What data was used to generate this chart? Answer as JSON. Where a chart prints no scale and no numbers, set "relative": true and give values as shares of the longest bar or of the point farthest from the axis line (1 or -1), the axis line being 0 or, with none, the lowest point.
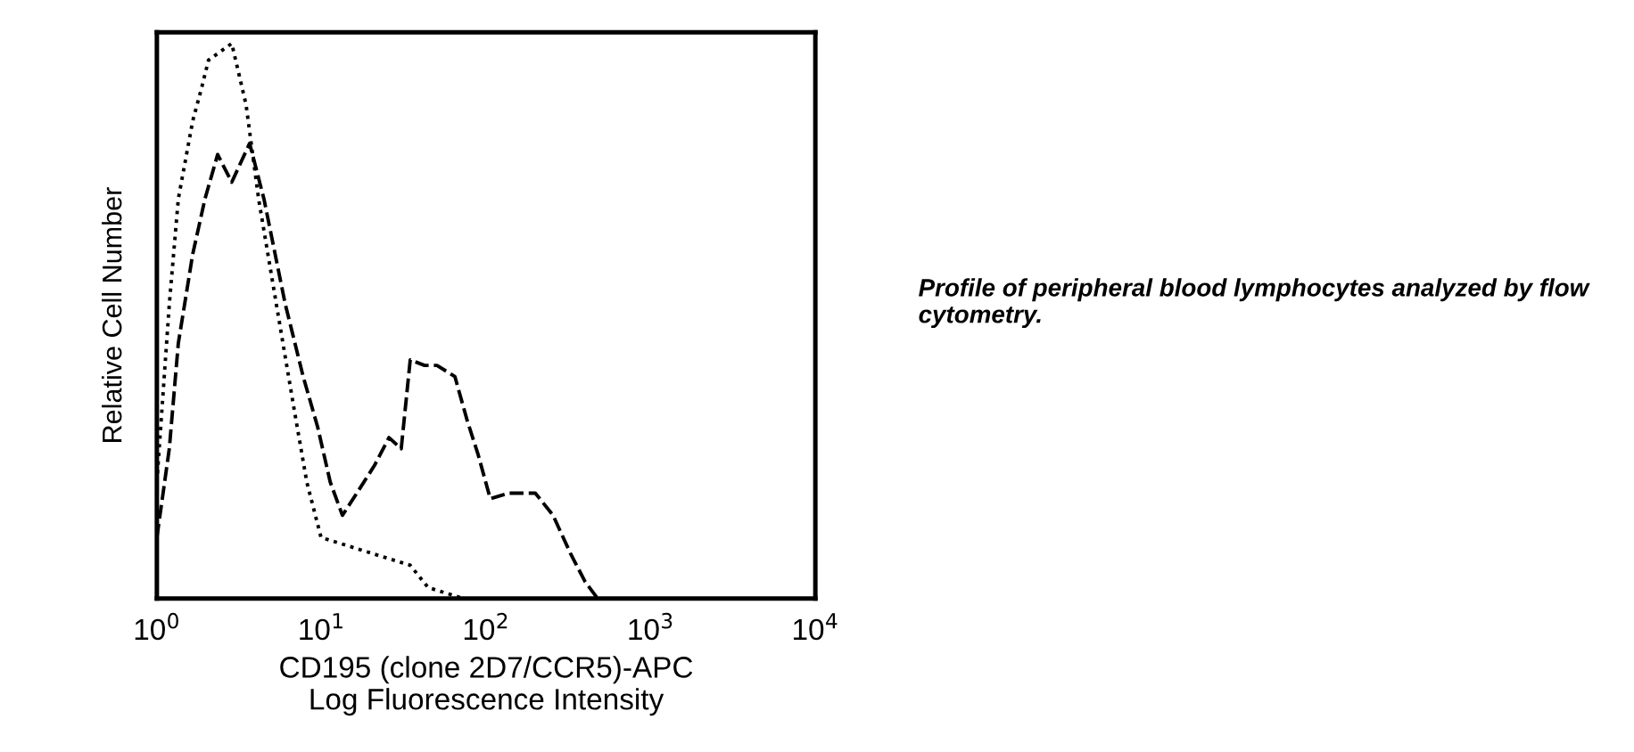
{
  "chart_data": {
    "type": "line",
    "relative": true,
    "log": "x",
    "ylabel": "Relative Cell Number",
    "xlabel": "CD195 (clone 2D7/CCR5)-APC\nLog Fluorescence Intensity",
    "xlim": [
      1,
      10000
    ],
    "xticks": [
      {
        "value": 1,
        "label": "10$^{0}$"
      },
      {
        "value": 10,
        "label": "10$^{1}$"
      },
      {
        "value": 100,
        "label": "10$^{2}$"
      },
      {
        "value": 1000,
        "label": "10$^{3}$"
      },
      {
        "value": 10000,
        "label": "10$^{4}$"
      }
    ],
    "tick_labels": "x",
    "grid": false,
    "annotations": [
      "Profile of peripheral blood lymphocytes analyzed by flow cytometry."
    ],
    "series": [
      {
        "color": "#000000",
        "line_style": "dotted",
        "x": [
          1.0,
          1.19,
          1.35,
          1.65,
          1.87,
          2.06,
          2.85,
          3.48,
          4.15,
          5.32,
          6.83,
          8.14,
          9.94,
          12.8,
          21.0,
          34.6,
          44.4,
          73.1,
          10000
        ],
        "values": [
          0.21,
          0.53,
          0.72,
          0.86,
          0.92,
          0.97,
          1,
          0.89,
          0.72,
          0.53,
          0.34,
          0.21,
          0.11,
          0.1,
          0.08,
          0.06,
          0.02,
          0,
          0
        ]
      },
      {
        "color": "#000000",
        "line_style": "dashed",
        "x": [
          1.0,
          1.19,
          1.35,
          1.65,
          1.96,
          2.34,
          2.85,
          3.66,
          4.47,
          6.03,
          7.74,
          9.46,
          11.3,
          13.4,
          16.4,
          21.0,
          25.7,
          30.5,
          34.6,
          42.3,
          50.3,
          64.6,
          76.9,
          89.3,
          106,
          137,
          199,
          255,
          327,
          400,
          476,
          10000
        ],
        "values": [
          0.11,
          0.27,
          0.46,
          0.62,
          0.72,
          0.8,
          0.75,
          0.82,
          0.72,
          0.53,
          0.4,
          0.31,
          0.21,
          0.15,
          0.19,
          0.24,
          0.29,
          0.27,
          0.43,
          0.42,
          0.42,
          0.4,
          0.32,
          0.26,
          0.18,
          0.19,
          0.19,
          0.15,
          0.08,
          0.03,
          0,
          0
        ]
      }
    ]
  }
}
